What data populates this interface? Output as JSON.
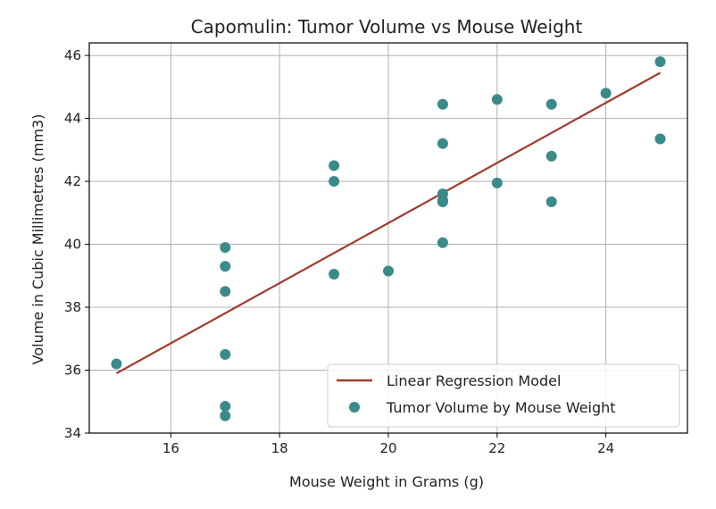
{
  "chart_data": {
    "type": "scatter",
    "title": "Capomulin: Tumor Volume vs Mouse Weight",
    "xlabel": "Mouse Weight in Grams (g)",
    "ylabel": "Volume in Cubic Millimetres (mm3)",
    "xlim": [
      14.5,
      25.5
    ],
    "ylim": [
      34,
      46.4
    ],
    "xticks": [
      16,
      18,
      20,
      22,
      24
    ],
    "yticks": [
      34,
      36,
      38,
      40,
      42,
      44,
      46
    ],
    "grid": true,
    "legend_position": "lower-right",
    "series": [
      {
        "name": "Linear Regression Model",
        "kind": "line",
        "color": "#a03a2e",
        "x": [
          15,
          25
        ],
        "y": [
          35.9,
          45.45
        ]
      },
      {
        "name": "Tumor Volume by Mouse Weight",
        "kind": "scatter",
        "color": "#3a8a8a",
        "x": [
          15,
          17,
          17,
          17,
          17,
          17,
          17,
          19,
          19,
          19,
          20,
          21,
          21,
          21,
          21,
          21,
          21,
          22,
          22,
          23,
          23,
          23,
          24,
          25,
          25
        ],
        "y": [
          36.2,
          39.9,
          39.3,
          38.5,
          36.5,
          34.85,
          34.55,
          42.5,
          42.0,
          39.05,
          39.15,
          44.45,
          43.2,
          41.6,
          41.4,
          41.35,
          40.05,
          44.6,
          41.95,
          44.45,
          42.8,
          41.35,
          44.8,
          45.8,
          43.35
        ]
      }
    ]
  }
}
